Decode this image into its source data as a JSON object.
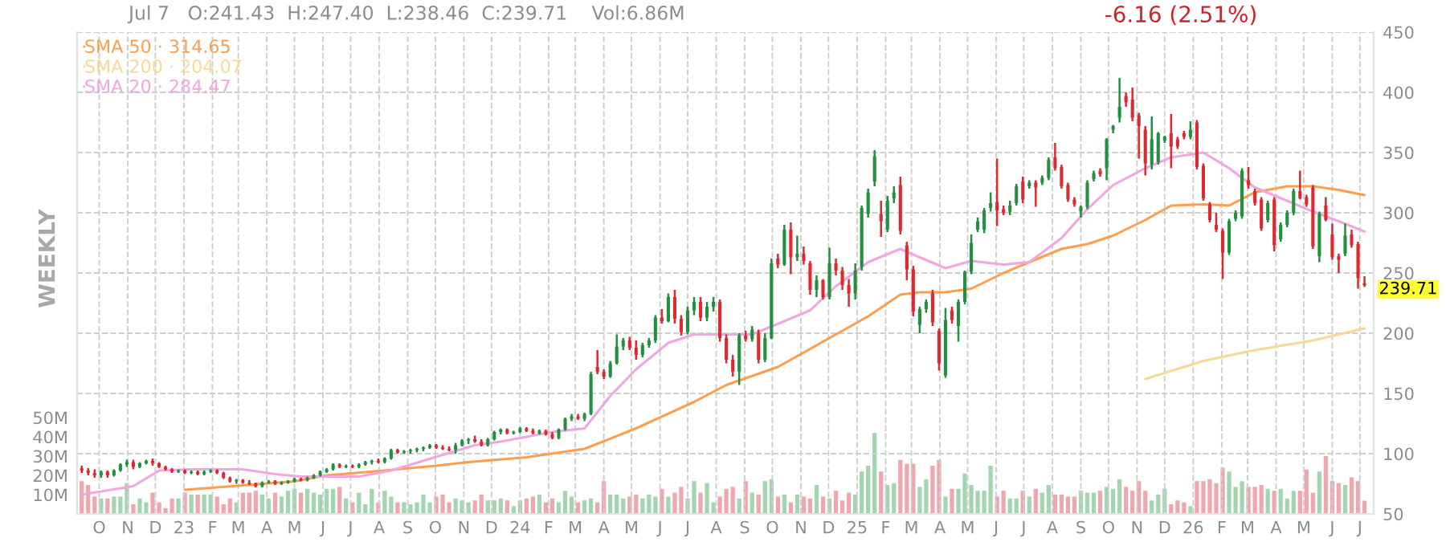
{
  "chart_data": {
    "type": "candlestick",
    "title": "Jul 7   O:241.43  H:247.40  L:238.46  C:239.71    Vol:6.86M",
    "subtitle": "-6.16 (2.51%)",
    "annotations": [
      "WEEKLY",
      {
        "text": "239.71",
        "x": "2026-07-06",
        "y": 239.71
      }
    ],
    "x": [
      "2022-09-12",
      "2022-09-19",
      "2022-09-26",
      "2022-10-03",
      "2022-10-10",
      "2022-10-17",
      "2022-10-24",
      "2022-10-31",
      "2022-11-07",
      "2022-11-14",
      "2022-11-21",
      "2022-11-28",
      "2022-12-05",
      "2022-12-12",
      "2022-12-19",
      "2022-12-26",
      "2023-01-02",
      "2023-01-09",
      "2023-01-16",
      "2023-01-23",
      "2023-01-30",
      "2023-02-06",
      "2023-02-13",
      "2023-02-20",
      "2023-02-27",
      "2023-03-06",
      "2023-03-13",
      "2023-03-20",
      "2023-03-27",
      "2023-04-03",
      "2023-04-10",
      "2023-04-17",
      "2023-04-24",
      "2023-05-01",
      "2023-05-08",
      "2023-05-15",
      "2023-05-22",
      "2023-05-29",
      "2023-06-05",
      "2023-06-12",
      "2023-06-19",
      "2023-06-26",
      "2023-07-03",
      "2023-07-10",
      "2023-07-17",
      "2023-07-24",
      "2023-07-31",
      "2023-08-07",
      "2023-08-14",
      "2023-08-21",
      "2023-08-28",
      "2023-09-04",
      "2023-09-11",
      "2023-09-18",
      "2023-09-25",
      "2023-10-02",
      "2023-10-09",
      "2023-10-16",
      "2023-10-23",
      "2023-10-30",
      "2023-11-06",
      "2023-11-13",
      "2023-11-20",
      "2023-11-27",
      "2023-12-04",
      "2023-12-11",
      "2023-12-18",
      "2023-12-25",
      "2024-01-01",
      "2024-01-08",
      "2024-01-15",
      "2024-01-22",
      "2024-01-29",
      "2024-02-05",
      "2024-02-12",
      "2024-02-19",
      "2024-02-26",
      "2024-03-04",
      "2024-03-11",
      "2024-03-18",
      "2024-03-25",
      "2024-04-01",
      "2024-04-08",
      "2024-04-15",
      "2024-04-22",
      "2024-04-29",
      "2024-05-06",
      "2024-05-13",
      "2024-05-20",
      "2024-05-27",
      "2024-06-03",
      "2024-06-10",
      "2024-06-17",
      "2024-06-24",
      "2024-07-01",
      "2024-07-08",
      "2024-07-15",
      "2024-07-22",
      "2024-07-29",
      "2024-08-05",
      "2024-08-12",
      "2024-08-19",
      "2024-08-26",
      "2024-09-02",
      "2024-09-09",
      "2024-09-16",
      "2024-09-23",
      "2024-09-30",
      "2024-10-07",
      "2024-10-14",
      "2024-10-21",
      "2024-10-28",
      "2024-11-04",
      "2024-11-11",
      "2024-11-18",
      "2024-11-25",
      "2024-12-02",
      "2024-12-09",
      "2024-12-16",
      "2024-12-23",
      "2024-12-30",
      "2025-01-06",
      "2025-01-13",
      "2025-01-20",
      "2025-01-27",
      "2025-02-03",
      "2025-02-10",
      "2025-02-17",
      "2025-02-24",
      "2025-03-03",
      "2025-03-10",
      "2025-03-17",
      "2025-03-24",
      "2025-03-31",
      "2025-04-07",
      "2025-04-14",
      "2025-04-21",
      "2025-04-28",
      "2025-05-05",
      "2025-05-12",
      "2025-05-19",
      "2025-05-26",
      "2025-06-02",
      "2025-06-09",
      "2025-06-16",
      "2025-06-23",
      "2025-06-30",
      "2025-07-07",
      "2025-07-14",
      "2025-07-21",
      "2025-07-28",
      "2025-08-04",
      "2025-08-11",
      "2025-08-18",
      "2025-08-25",
      "2025-09-01",
      "2025-09-08",
      "2025-09-15",
      "2025-09-22",
      "2025-09-29",
      "2025-10-06",
      "2025-10-13",
      "2025-10-20",
      "2025-10-27",
      "2025-11-03",
      "2025-11-10",
      "2025-11-17",
      "2025-11-24",
      "2025-12-01",
      "2025-12-08",
      "2025-12-15",
      "2025-12-22",
      "2025-12-29",
      "2026-01-05",
      "2026-01-12",
      "2026-01-19",
      "2026-01-26",
      "2026-02-02",
      "2026-02-09",
      "2026-02-16",
      "2026-02-23",
      "2026-03-02",
      "2026-03-09",
      "2026-03-16",
      "2026-03-23",
      "2026-03-30",
      "2026-04-06",
      "2026-04-13",
      "2026-04-20",
      "2026-04-27",
      "2026-05-04",
      "2026-05-11",
      "2026-05-18",
      "2026-05-25",
      "2026-06-01",
      "2026-06-08",
      "2026-06-15",
      "2026-06-22",
      "2026-06-29",
      "2026-07-06"
    ],
    "ohlc": [
      [
        88,
        90,
        84,
        86
      ],
      [
        86,
        88,
        82,
        84
      ],
      [
        84,
        87,
        80,
        82
      ],
      [
        82,
        86,
        80,
        85
      ],
      [
        85,
        86,
        80,
        82
      ],
      [
        82,
        87,
        81,
        86
      ],
      [
        86,
        92,
        85,
        91
      ],
      [
        91,
        95,
        89,
        93
      ],
      [
        93,
        95,
        87,
        89
      ],
      [
        89,
        93,
        88,
        92
      ],
      [
        92,
        95,
        91,
        94
      ],
      [
        94,
        96,
        90,
        92
      ],
      [
        92,
        93,
        88,
        89
      ],
      [
        89,
        90,
        86,
        87
      ],
      [
        87,
        88,
        84,
        85
      ],
      [
        85,
        87,
        84,
        86
      ],
      [
        86,
        87,
        83,
        84
      ],
      [
        84,
        86,
        83,
        85
      ],
      [
        85,
        86,
        82,
        83
      ],
      [
        83,
        86,
        82,
        85
      ],
      [
        85,
        87,
        84,
        86
      ],
      [
        86,
        87,
        83,
        84
      ],
      [
        84,
        85,
        79,
        80
      ],
      [
        80,
        81,
        76,
        77
      ],
      [
        77,
        79,
        75,
        78
      ],
      [
        78,
        79,
        75,
        76
      ],
      [
        76,
        78,
        74,
        75
      ],
      [
        75,
        76,
        72,
        73
      ],
      [
        73,
        77,
        72,
        76
      ],
      [
        76,
        78,
        75,
        77
      ],
      [
        77,
        78,
        74,
        75
      ],
      [
        75,
        77,
        74,
        76
      ],
      [
        76,
        78,
        75,
        77
      ],
      [
        77,
        80,
        76,
        79
      ],
      [
        79,
        80,
        77,
        78
      ],
      [
        78,
        81,
        77,
        80
      ],
      [
        80,
        83,
        79,
        82
      ],
      [
        82,
        86,
        81,
        85
      ],
      [
        85,
        88,
        84,
        87
      ],
      [
        87,
        92,
        86,
        91
      ],
      [
        91,
        92,
        88,
        89
      ],
      [
        89,
        91,
        88,
        90
      ],
      [
        90,
        91,
        88,
        89
      ],
      [
        89,
        92,
        88,
        91
      ],
      [
        91,
        94,
        90,
        93
      ],
      [
        93,
        95,
        91,
        94
      ],
      [
        94,
        96,
        92,
        93
      ],
      [
        93,
        97,
        92,
        96
      ],
      [
        96,
        104,
        95,
        103
      ],
      [
        103,
        104,
        100,
        101
      ],
      [
        101,
        103,
        100,
        102
      ],
      [
        102,
        104,
        100,
        103
      ],
      [
        103,
        105,
        101,
        104
      ],
      [
        104,
        106,
        102,
        105
      ],
      [
        105,
        108,
        104,
        107
      ],
      [
        107,
        108,
        104,
        105
      ],
      [
        105,
        107,
        103,
        104
      ],
      [
        104,
        106,
        102,
        103
      ],
      [
        103,
        109,
        100,
        107
      ],
      [
        107,
        112,
        106,
        111
      ],
      [
        111,
        113,
        108,
        112
      ],
      [
        112,
        115,
        109,
        110
      ],
      [
        110,
        112,
        106,
        107
      ],
      [
        107,
        113,
        106,
        112
      ],
      [
        112,
        119,
        111,
        118
      ],
      [
        118,
        121,
        116,
        120
      ],
      [
        120,
        121,
        116,
        117
      ],
      [
        117,
        119,
        116,
        118
      ],
      [
        118,
        122,
        117,
        121
      ],
      [
        121,
        122,
        118,
        119
      ],
      [
        119,
        121,
        116,
        117
      ],
      [
        117,
        120,
        116,
        119
      ],
      [
        119,
        120,
        115,
        116
      ],
      [
        116,
        118,
        112,
        113
      ],
      [
        113,
        121,
        112,
        120
      ],
      [
        120,
        130,
        119,
        129
      ],
      [
        129,
        133,
        127,
        131
      ],
      [
        131,
        133,
        128,
        129
      ],
      [
        129,
        134,
        127,
        133
      ],
      [
        133,
        168,
        132,
        166
      ],
      [
        172,
        186,
        166,
        168
      ],
      [
        168,
        170,
        162,
        164
      ],
      [
        164,
        177,
        163,
        175
      ],
      [
        175,
        199,
        174,
        189
      ],
      [
        189,
        196,
        186,
        194
      ],
      [
        194,
        197,
        186,
        188
      ],
      [
        188,
        194,
        178,
        182
      ],
      [
        182,
        192,
        180,
        190
      ],
      [
        190,
        196,
        188,
        194
      ],
      [
        194,
        215,
        192,
        213
      ],
      [
        213,
        220,
        208,
        210
      ],
      [
        210,
        233,
        209,
        230
      ],
      [
        230,
        236,
        208,
        212
      ],
      [
        212,
        215,
        198,
        201
      ],
      [
        201,
        222,
        199,
        219
      ],
      [
        219,
        230,
        215,
        226
      ],
      [
        226,
        230,
        210,
        213
      ],
      [
        213,
        226,
        210,
        222
      ],
      [
        222,
        230,
        218,
        226
      ],
      [
        226,
        228,
        193,
        196
      ],
      [
        196,
        199,
        175,
        178
      ],
      [
        178,
        182,
        164,
        168
      ],
      [
        168,
        200,
        157,
        198
      ],
      [
        198,
        202,
        193,
        195
      ],
      [
        195,
        206,
        193,
        203
      ],
      [
        200,
        203,
        175,
        178
      ],
      [
        178,
        200,
        176,
        196
      ],
      [
        196,
        262,
        195,
        258
      ],
      [
        262,
        266,
        254,
        257
      ],
      [
        257,
        290,
        256,
        286
      ],
      [
        286,
        292,
        249,
        263
      ],
      [
        263,
        281,
        260,
        266
      ],
      [
        266,
        272,
        257,
        260
      ],
      [
        258,
        260,
        232,
        236
      ],
      [
        236,
        248,
        230,
        244
      ],
      [
        244,
        245,
        228,
        230
      ],
      [
        230,
        271,
        228,
        258
      ],
      [
        258,
        262,
        248,
        252
      ],
      [
        252,
        255,
        236,
        240
      ],
      [
        240,
        245,
        222,
        233
      ],
      [
        233,
        258,
        228,
        252
      ],
      [
        255,
        306,
        252,
        304
      ],
      [
        299,
        320,
        296,
        317
      ],
      [
        326,
        352,
        322,
        347
      ],
      [
        299,
        310,
        280,
        293
      ],
      [
        286,
        314,
        284,
        310
      ],
      [
        312,
        322,
        308,
        317
      ],
      [
        323,
        330,
        282,
        285
      ],
      [
        273,
        276,
        244,
        253
      ],
      [
        253,
        256,
        214,
        218
      ],
      [
        207,
        222,
        200,
        220
      ],
      [
        220,
        228,
        217,
        226
      ],
      [
        233,
        236,
        206,
        209
      ],
      [
        202,
        204,
        169,
        175
      ],
      [
        165,
        221,
        163,
        211
      ],
      [
        219,
        222,
        208,
        211
      ],
      [
        206,
        228,
        193,
        226
      ],
      [
        226,
        252,
        224,
        251
      ],
      [
        251,
        282,
        249,
        275
      ],
      [
        286,
        296,
        284,
        293
      ],
      [
        286,
        304,
        283,
        302
      ],
      [
        304,
        317,
        301,
        308
      ],
      [
        309,
        345,
        289,
        302
      ],
      [
        303,
        306,
        298,
        300
      ],
      [
        301,
        310,
        298,
        306
      ],
      [
        308,
        324,
        306,
        322
      ],
      [
        326,
        330,
        308,
        311
      ],
      [
        322,
        327,
        320,
        325
      ],
      [
        325,
        327,
        305,
        321
      ],
      [
        325,
        331,
        323,
        329
      ],
      [
        329,
        346,
        327,
        344
      ],
      [
        346,
        358,
        335,
        337
      ],
      [
        338,
        340,
        320,
        322
      ],
      [
        323,
        325,
        309,
        311
      ],
      [
        311,
        313,
        305,
        307
      ],
      [
        301,
        306,
        296,
        305
      ],
      [
        305,
        327,
        303,
        325
      ],
      [
        328,
        335,
        326,
        333
      ],
      [
        335,
        337,
        330,
        332
      ],
      [
        337,
        362,
        327,
        361
      ],
      [
        369,
        373,
        366,
        372
      ],
      [
        379,
        412,
        375,
        388
      ],
      [
        397,
        400,
        388,
        392
      ],
      [
        394,
        404,
        376,
        379
      ],
      [
        381,
        383,
        345,
        372
      ],
      [
        369,
        372,
        331,
        341
      ],
      [
        340,
        380,
        336,
        361
      ],
      [
        342,
        367,
        340,
        366
      ],
      [
        360,
        364,
        358,
        363
      ],
      [
        366,
        382,
        337,
        355
      ],
      [
        361,
        363,
        353,
        355
      ],
      [
        366,
        368,
        361,
        363
      ],
      [
        363,
        376,
        361,
        369
      ],
      [
        375,
        377,
        336,
        338
      ],
      [
        339,
        341,
        310,
        312
      ],
      [
        307,
        309,
        292,
        294
      ],
      [
        290,
        300,
        284,
        286
      ],
      [
        285,
        287,
        245,
        267
      ],
      [
        267,
        295,
        265,
        293
      ],
      [
        295,
        302,
        293,
        300
      ],
      [
        297,
        337,
        295,
        335
      ],
      [
        327,
        338,
        320,
        323
      ],
      [
        318,
        320,
        306,
        308
      ],
      [
        311,
        313,
        285,
        287
      ],
      [
        294,
        310,
        292,
        308
      ],
      [
        311,
        313,
        268,
        273
      ],
      [
        278,
        292,
        276,
        290
      ],
      [
        290,
        302,
        288,
        300
      ],
      [
        300,
        320,
        298,
        318
      ],
      [
        318,
        335,
        311,
        312
      ],
      [
        313,
        315,
        305,
        307
      ],
      [
        321,
        323,
        270,
        272
      ],
      [
        264,
        301,
        259,
        299
      ],
      [
        306,
        313,
        293,
        294
      ],
      [
        282,
        291,
        261,
        263
      ],
      [
        264,
        266,
        250,
        261
      ],
      [
        266,
        291,
        264,
        281
      ],
      [
        282,
        286,
        271,
        273
      ],
      [
        274,
        276,
        237,
        245.87
      ],
      [
        241.43,
        247.4,
        238.46,
        239.71
      ]
    ],
    "colors": [
      "#dc2a33",
      "#dc2a33",
      "#dc2a33",
      "#23903f",
      "#dc2a33",
      "#23903f",
      "#23903f",
      "#23903f",
      "#dc2a33",
      "#23903f",
      "#23903f",
      "#dc2a33",
      "#dc2a33",
      "#dc2a33",
      "#dc2a33",
      "#23903f",
      "#dc2a33",
      "#23903f",
      "#dc2a33",
      "#23903f",
      "#23903f",
      "#dc2a33",
      "#dc2a33",
      "#dc2a33",
      "#23903f",
      "#dc2a33",
      "#dc2a33",
      "#dc2a33",
      "#23903f",
      "#23903f",
      "#dc2a33",
      "#23903f",
      "#23903f",
      "#23903f",
      "#dc2a33",
      "#23903f",
      "#23903f",
      "#23903f",
      "#23903f",
      "#23903f",
      "#dc2a33",
      "#23903f",
      "#dc2a33",
      "#23903f",
      "#23903f",
      "#23903f",
      "#dc2a33",
      "#23903f",
      "#23903f",
      "#dc2a33",
      "#23903f",
      "#23903f",
      "#23903f",
      "#23903f",
      "#23903f",
      "#dc2a33",
      "#dc2a33",
      "#dc2a33",
      "#23903f",
      "#23903f",
      "#23903f",
      "#dc2a33",
      "#dc2a33",
      "#23903f",
      "#23903f",
      "#23903f",
      "#dc2a33",
      "#23903f",
      "#23903f",
      "#dc2a33",
      "#dc2a33",
      "#23903f",
      "#dc2a33",
      "#dc2a33",
      "#23903f",
      "#23903f",
      "#23903f",
      "#dc2a33",
      "#23903f",
      "#23903f",
      "#dc2a33",
      "#dc2a33",
      "#23903f",
      "#23903f",
      "#23903f",
      "#dc2a33",
      "#dc2a33",
      "#23903f",
      "#23903f",
      "#23903f",
      "#dc2a33",
      "#23903f",
      "#dc2a33",
      "#dc2a33",
      "#23903f",
      "#23903f",
      "#dc2a33",
      "#23903f",
      "#23903f",
      "#dc2a33",
      "#dc2a33",
      "#dc2a33",
      "#23903f",
      "#dc2a33",
      "#23903f",
      "#dc2a33",
      "#23903f",
      "#23903f",
      "#dc2a33",
      "#23903f",
      "#dc2a33",
      "#23903f",
      "#dc2a33",
      "#dc2a33",
      "#23903f",
      "#dc2a33",
      "#23903f",
      "#dc2a33",
      "#dc2a33",
      "#dc2a33",
      "#23903f",
      "#23903f",
      "#23903f",
      "#23903f",
      "#dc2a33",
      "#23903f",
      "#23903f",
      "#dc2a33",
      "#dc2a33",
      "#dc2a33",
      "#23903f",
      "#23903f",
      "#dc2a33",
      "#dc2a33",
      "#23903f",
      "#dc2a33",
      "#23903f",
      "#23903f",
      "#23903f",
      "#23903f",
      "#23903f",
      "#23903f",
      "#dc2a33",
      "#dc2a33",
      "#23903f",
      "#23903f",
      "#dc2a33",
      "#23903f",
      "#dc2a33",
      "#23903f",
      "#23903f",
      "#dc2a33",
      "#dc2a33",
      "#dc2a33",
      "#dc2a33",
      "#23903f",
      "#23903f",
      "#23903f",
      "#dc2a33",
      "#23903f",
      "#23903f",
      "#23903f",
      "#dc2a33",
      "#dc2a33",
      "#dc2a33",
      "#dc2a33",
      "#23903f",
      "#23903f",
      "#23903f",
      "#dc2a33",
      "#dc2a33",
      "#dc2a33",
      "#23903f",
      "#dc2a33",
      "#dc2a33",
      "#dc2a33",
      "#dc2a33",
      "#dc2a33",
      "#23903f",
      "#23903f",
      "#23903f",
      "#dc2a33",
      "#dc2a33",
      "#dc2a33",
      "#23903f",
      "#dc2a33",
      "#23903f",
      "#23903f",
      "#23903f",
      "#dc2a33",
      "#dc2a33",
      "#dc2a33",
      "#23903f",
      "#dc2a33",
      "#dc2a33",
      "#dc2a33",
      "#23903f",
      "#dc2a33",
      "#dc2a33",
      "#dc2a33"
    ],
    "series": [
      {
        "name": "SMA 50 · 314.65",
        "type": "line",
        "color": "#fd9e4f",
        "x": [
          "2023-01-02",
          "2023-05-01",
          "2023-06-05",
          "2023-08-07",
          "2023-10-02",
          "2023-11-06",
          "2024-01-08",
          "2024-03-11",
          "2024-05-06",
          "2024-07-08",
          "2024-08-12",
          "2024-10-07",
          "2024-12-09",
          "2025-01-13",
          "2025-02-17",
          "2025-03-10",
          "2025-04-07",
          "2025-05-05",
          "2025-06-09",
          "2025-07-07",
          "2025-08-11",
          "2025-09-08",
          "2025-10-06",
          "2025-11-10",
          "2025-12-08",
          "2026-01-12",
          "2026-02-09",
          "2026-03-09",
          "2026-04-13",
          "2026-05-11",
          "2026-06-08",
          "2026-07-06"
        ],
        "values": [
          70,
          77,
          82,
          86,
          90,
          93,
          97,
          104,
          121,
          143,
          157,
          172,
          199,
          214,
          232,
          234,
          234,
          237,
          250,
          259,
          270,
          274,
          281,
          294,
          306,
          307,
          306,
          317,
          322,
          322,
          319,
          314.65
        ]
      },
      {
        "name": "SMA 200 · 204.07",
        "type": "line",
        "color": "#f5d996",
        "x": [
          "2025-11-10",
          "2026-01-12",
          "2026-03-09",
          "2026-05-11",
          "2026-06-08",
          "2026-07-06"
        ],
        "values": [
          162,
          177,
          186,
          194,
          199,
          204.07
        ]
      },
      {
        "name": "SMA 20 · 284.47",
        "type": "line",
        "color": "#f2a6e0",
        "x": [
          "2022-09-12",
          "2022-11-07",
          "2022-12-05",
          "2023-01-09",
          "2023-03-06",
          "2023-04-10",
          "2023-05-08",
          "2023-07-10",
          "2023-08-14",
          "2023-10-09",
          "2023-11-13",
          "2023-12-11",
          "2024-02-05",
          "2024-03-11",
          "2024-04-08",
          "2024-05-06",
          "2024-06-10",
          "2024-07-08",
          "2024-09-09",
          "2024-10-14",
          "2024-11-11",
          "2024-12-09",
          "2025-01-13",
          "2025-02-17",
          "2025-03-10",
          "2025-04-07",
          "2025-05-05",
          "2025-06-09",
          "2025-07-07",
          "2025-08-11",
          "2025-09-08",
          "2025-10-06",
          "2025-11-10",
          "2025-12-08",
          "2026-01-12",
          "2026-02-09",
          "2026-03-09",
          "2026-04-13",
          "2026-05-11",
          "2026-06-08",
          "2026-07-06"
        ],
        "values": [
          66,
          73,
          86,
          87,
          87,
          83,
          81,
          81,
          86,
          99,
          107,
          110,
          118,
          121,
          148,
          170,
          192,
          199,
          199,
          210,
          219,
          239,
          259,
          270,
          263,
          254,
          260,
          257,
          259,
          279,
          303,
          323,
          337,
          346,
          350,
          337,
          321,
          310,
          301,
          293,
          284.47
        ]
      },
      {
        "type": "bar",
        "axis": "y2",
        "colors": [
          "#efa6ac",
          "#efa6ac",
          "#efa6ac",
          "#a3d5ae",
          "#efa6ac",
          "#a3d5ae",
          "#a3d5ae",
          "#a3d5ae",
          "#efa6ac",
          "#a3d5ae",
          "#a3d5ae",
          "#efa6ac",
          "#efa6ac",
          "#efa6ac",
          "#efa6ac",
          "#a3d5ae",
          "#efa6ac",
          "#a3d5ae",
          "#efa6ac",
          "#a3d5ae",
          "#a3d5ae",
          "#efa6ac",
          "#efa6ac",
          "#efa6ac",
          "#a3d5ae",
          "#efa6ac",
          "#efa6ac",
          "#efa6ac",
          "#a3d5ae",
          "#a3d5ae",
          "#efa6ac",
          "#a3d5ae",
          "#a3d5ae",
          "#a3d5ae",
          "#efa6ac",
          "#a3d5ae",
          "#a3d5ae",
          "#a3d5ae",
          "#a3d5ae",
          "#a3d5ae",
          "#efa6ac",
          "#a3d5ae",
          "#efa6ac",
          "#a3d5ae",
          "#a3d5ae",
          "#a3d5ae",
          "#efa6ac",
          "#a3d5ae",
          "#a3d5ae",
          "#efa6ac",
          "#a3d5ae",
          "#a3d5ae",
          "#a3d5ae",
          "#a3d5ae",
          "#a3d5ae",
          "#efa6ac",
          "#efa6ac",
          "#efa6ac",
          "#a3d5ae",
          "#a3d5ae",
          "#a3d5ae",
          "#efa6ac",
          "#efa6ac",
          "#a3d5ae",
          "#a3d5ae",
          "#a3d5ae",
          "#efa6ac",
          "#a3d5ae",
          "#a3d5ae",
          "#efa6ac",
          "#efa6ac",
          "#a3d5ae",
          "#efa6ac",
          "#efa6ac",
          "#a3d5ae",
          "#a3d5ae",
          "#a3d5ae",
          "#efa6ac",
          "#a3d5ae",
          "#a3d5ae",
          "#efa6ac",
          "#efa6ac",
          "#a3d5ae",
          "#a3d5ae",
          "#a3d5ae",
          "#efa6ac",
          "#efa6ac",
          "#a3d5ae",
          "#a3d5ae",
          "#a3d5ae",
          "#efa6ac",
          "#a3d5ae",
          "#efa6ac",
          "#efa6ac",
          "#a3d5ae",
          "#a3d5ae",
          "#efa6ac",
          "#a3d5ae",
          "#a3d5ae",
          "#efa6ac",
          "#efa6ac",
          "#efa6ac",
          "#a3d5ae",
          "#efa6ac",
          "#a3d5ae",
          "#efa6ac",
          "#a3d5ae",
          "#a3d5ae",
          "#efa6ac",
          "#a3d5ae",
          "#efa6ac",
          "#a3d5ae",
          "#efa6ac",
          "#efa6ac",
          "#a3d5ae",
          "#efa6ac",
          "#a3d5ae",
          "#efa6ac",
          "#efa6ac",
          "#efa6ac",
          "#a3d5ae",
          "#a3d5ae",
          "#a3d5ae",
          "#a3d5ae",
          "#efa6ac",
          "#a3d5ae",
          "#a3d5ae",
          "#efa6ac",
          "#efa6ac",
          "#efa6ac",
          "#a3d5ae",
          "#a3d5ae",
          "#efa6ac",
          "#efa6ac",
          "#a3d5ae",
          "#efa6ac",
          "#a3d5ae",
          "#a3d5ae",
          "#a3d5ae",
          "#a3d5ae",
          "#a3d5ae",
          "#a3d5ae",
          "#efa6ac",
          "#efa6ac",
          "#a3d5ae",
          "#a3d5ae",
          "#efa6ac",
          "#a3d5ae",
          "#efa6ac",
          "#a3d5ae",
          "#a3d5ae",
          "#efa6ac",
          "#efa6ac",
          "#efa6ac",
          "#efa6ac",
          "#a3d5ae",
          "#a3d5ae",
          "#a3d5ae",
          "#efa6ac",
          "#a3d5ae",
          "#a3d5ae",
          "#a3d5ae",
          "#efa6ac",
          "#efa6ac",
          "#efa6ac",
          "#efa6ac",
          "#a3d5ae",
          "#a3d5ae",
          "#a3d5ae",
          "#efa6ac",
          "#efa6ac",
          "#efa6ac",
          "#a3d5ae",
          "#efa6ac",
          "#efa6ac",
          "#efa6ac",
          "#efa6ac",
          "#efa6ac",
          "#a3d5ae",
          "#a3d5ae",
          "#a3d5ae",
          "#efa6ac",
          "#efa6ac",
          "#efa6ac",
          "#a3d5ae",
          "#efa6ac",
          "#a3d5ae",
          "#a3d5ae",
          "#a3d5ae",
          "#efa6ac",
          "#efa6ac",
          "#efa6ac",
          "#a3d5ae",
          "#efa6ac",
          "#efa6ac",
          "#efa6ac",
          "#a3d5ae",
          "#efa6ac",
          "#efa6ac",
          "#efa6ac"
        ],
        "values": [
          17,
          15,
          9,
          8,
          8,
          9,
          9,
          16,
          5,
          8,
          6,
          11,
          6,
          3,
          8,
          8,
          11,
          10,
          10,
          10,
          10,
          9,
          5,
          8,
          6,
          11,
          11,
          12,
          10,
          8,
          11,
          9,
          12,
          13,
          11,
          13,
          11,
          10,
          13,
          13,
          14,
          8,
          6,
          11,
          5,
          13,
          6,
          12,
          9,
          6,
          6,
          5,
          6,
          10,
          6,
          9,
          10,
          6,
          8,
          7,
          6,
          7,
          10,
          7,
          7,
          8,
          7,
          4,
          7,
          8,
          9,
          10,
          6,
          8,
          6,
          12,
          9,
          6,
          7,
          8,
          6,
          17,
          10,
          10,
          8,
          9,
          10,
          8,
          10,
          9,
          13,
          9,
          11,
          14,
          8,
          17,
          11,
          16,
          6,
          9,
          13,
          14,
          8,
          17,
          11,
          10,
          17,
          18,
          9,
          10,
          6,
          10,
          9,
          8,
          15,
          9,
          8,
          12,
          7,
          11,
          10,
          22,
          25,
          42,
          22,
          15,
          16,
          28,
          26,
          26,
          14,
          18,
          25,
          28,
          9,
          13,
          13,
          21,
          15,
          12,
          12,
          25,
          9,
          12,
          8,
          8,
          12,
          9,
          13,
          11,
          15,
          10,
          10,
          9,
          9,
          12,
          11,
          11,
          12,
          14,
          13,
          18,
          14,
          12,
          17,
          12,
          7,
          10,
          13,
          5,
          7,
          6,
          4,
          17,
          17,
          18,
          16,
          24,
          22,
          14,
          17,
          14,
          14,
          15,
          13,
          12,
          13,
          8,
          12,
          12,
          23,
          11,
          22,
          30,
          17,
          16,
          15,
          19,
          17,
          6.86
        ]
      }
    ],
    "xlim": [
      "2022-09-07",
      "2026-07-16"
    ],
    "xticks": [
      {
        "value": "2022-10-01",
        "label": "O"
      },
      {
        "value": "2022-11-01",
        "label": "N"
      },
      {
        "value": "2022-12-01",
        "label": "D"
      },
      {
        "value": "2023-01-01",
        "label": "23"
      },
      {
        "value": "2023-02-01",
        "label": "F"
      },
      {
        "value": "2023-03-01",
        "label": "M"
      },
      {
        "value": "2023-04-01",
        "label": "A"
      },
      {
        "value": "2023-05-01",
        "label": "M"
      },
      {
        "value": "2023-06-01",
        "label": "J"
      },
      {
        "value": "2023-07-01",
        "label": "J"
      },
      {
        "value": "2023-08-01",
        "label": "A"
      },
      {
        "value": "2023-09-01",
        "label": "S"
      },
      {
        "value": "2023-10-01",
        "label": "O"
      },
      {
        "value": "2023-11-01",
        "label": "N"
      },
      {
        "value": "2023-12-01",
        "label": "D"
      },
      {
        "value": "2024-01-01",
        "label": "24"
      },
      {
        "value": "2024-02-01",
        "label": "F"
      },
      {
        "value": "2024-03-01",
        "label": "M"
      },
      {
        "value": "2024-04-01",
        "label": "A"
      },
      {
        "value": "2024-05-01",
        "label": "M"
      },
      {
        "value": "2024-06-01",
        "label": "J"
      },
      {
        "value": "2024-07-01",
        "label": "J"
      },
      {
        "value": "2024-08-01",
        "label": "A"
      },
      {
        "value": "2024-09-01",
        "label": "S"
      },
      {
        "value": "2024-10-01",
        "label": "O"
      },
      {
        "value": "2024-11-01",
        "label": "N"
      },
      {
        "value": "2024-12-01",
        "label": "D"
      },
      {
        "value": "2025-01-01",
        "label": "25"
      },
      {
        "value": "2025-02-01",
        "label": "F"
      },
      {
        "value": "2025-03-01",
        "label": "M"
      },
      {
        "value": "2025-04-01",
        "label": "A"
      },
      {
        "value": "2025-05-01",
        "label": "M"
      },
      {
        "value": "2025-06-01",
        "label": "J"
      },
      {
        "value": "2025-07-01",
        "label": "J"
      },
      {
        "value": "2025-08-01",
        "label": "A"
      },
      {
        "value": "2025-09-01",
        "label": "S"
      },
      {
        "value": "2025-10-01",
        "label": "O"
      },
      {
        "value": "2025-11-01",
        "label": "N"
      },
      {
        "value": "2025-12-01",
        "label": "D"
      },
      {
        "value": "2026-01-01",
        "label": "26"
      },
      {
        "value": "2026-02-01",
        "label": "F"
      },
      {
        "value": "2026-03-01",
        "label": "M"
      },
      {
        "value": "2026-04-01",
        "label": "A"
      },
      {
        "value": "2026-05-01",
        "label": "M"
      },
      {
        "value": "2026-06-01",
        "label": "J"
      },
      {
        "value": "2026-07-01",
        "label": "J"
      }
    ],
    "ylim": [
      50,
      450
    ],
    "yticks": [
      50,
      100,
      150,
      200,
      250,
      300,
      350,
      400,
      450
    ],
    "y2lim": [
      0,
      250
    ],
    "y2ticks": [
      {
        "value": 10,
        "label": "10M"
      },
      {
        "value": 20,
        "label": "20M"
      },
      {
        "value": 30,
        "label": "30M"
      },
      {
        "value": 40,
        "label": "40M"
      },
      {
        "value": 50,
        "label": "50M"
      }
    ],
    "grid": true,
    "legend": "top left"
  }
}
